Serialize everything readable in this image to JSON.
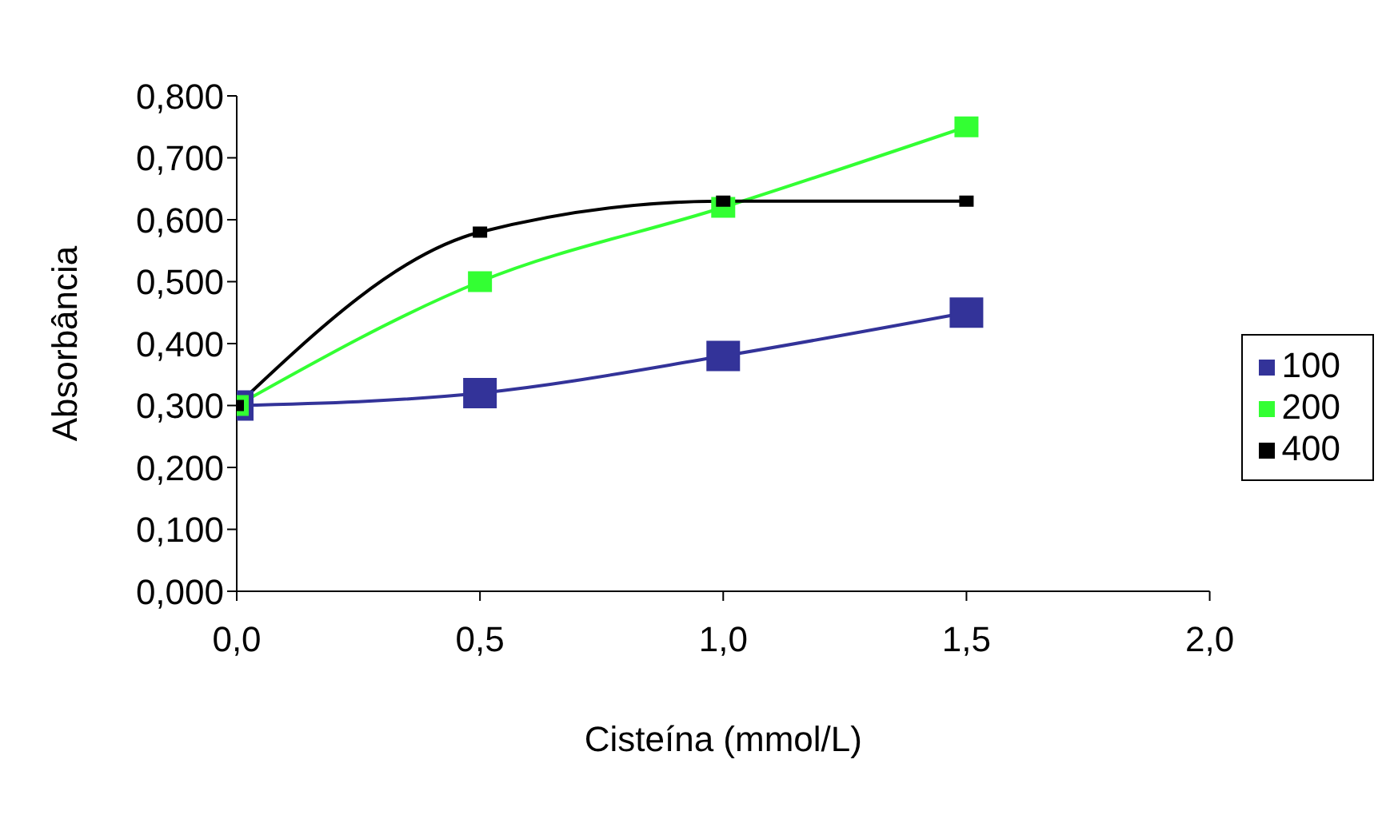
{
  "chart_data": {
    "type": "line",
    "xlabel": "Cisteína (mmol/L)",
    "ylabel": "Absorbância",
    "x": [
      0,
      0.5,
      1.0,
      1.5
    ],
    "series": [
      {
        "name": "100",
        "color": "#333399",
        "values": [
          0.3,
          0.32,
          0.38,
          0.45
        ]
      },
      {
        "name": "200",
        "color": "#33ff33",
        "values": [
          0.3,
          0.5,
          0.62,
          0.75
        ]
      },
      {
        "name": "400",
        "color": "#000000",
        "values": [
          0.3,
          0.58,
          0.63,
          0.63
        ]
      }
    ],
    "xlim": [
      0,
      2
    ],
    "xticks": [
      {
        "value": 0,
        "label": "0,0"
      },
      {
        "value": 0.5,
        "label": "0,5"
      },
      {
        "value": 1,
        "label": "1,0"
      },
      {
        "value": 1.5,
        "label": "1,5"
      },
      {
        "value": 2,
        "label": "2,0"
      }
    ],
    "ylim": [
      0,
      0.8
    ],
    "yticks": [
      {
        "value": 0,
        "label": "0,000"
      },
      {
        "value": 0.1,
        "label": "0,100"
      },
      {
        "value": 0.2,
        "label": "0,200"
      },
      {
        "value": 0.3,
        "label": "0,300"
      },
      {
        "value": 0.4,
        "label": "0,400"
      },
      {
        "value": 0.5,
        "label": "0,500"
      },
      {
        "value": 0.6,
        "label": "0,600"
      },
      {
        "value": 0.7,
        "label": "0,700"
      },
      {
        "value": 0.8,
        "label": "0,800"
      }
    ],
    "legend": "right",
    "marker": "square",
    "line_style": "solid"
  }
}
